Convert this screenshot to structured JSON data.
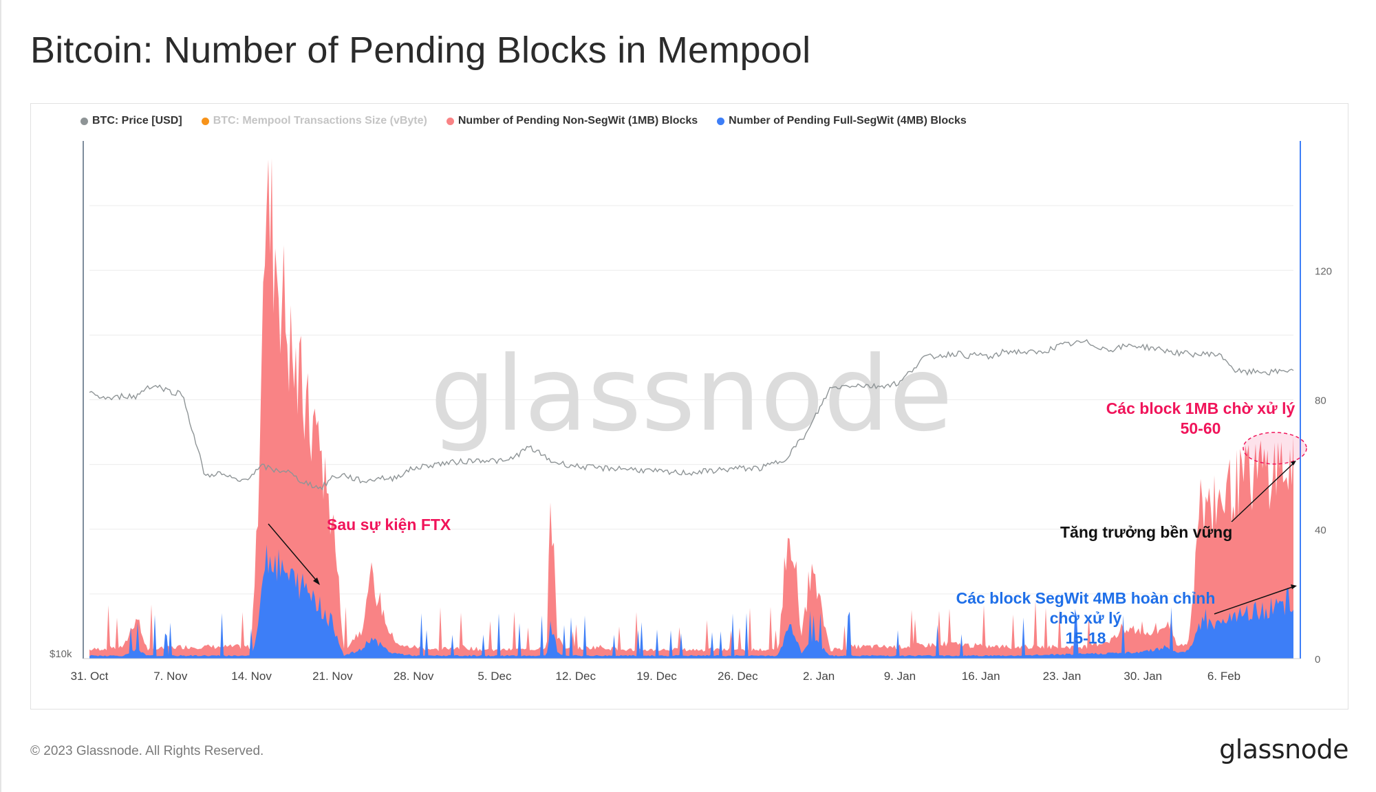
{
  "title": "Bitcoin: Number of Pending Blocks in Mempool",
  "legend": [
    {
      "label": "BTC: Price [USD]",
      "color": "#8e9496",
      "enabled": true
    },
    {
      "label": "BTC: Mempool Transactions Size (vByte)",
      "color": "#f7931a",
      "enabled": false
    },
    {
      "label": "Number of Pending Non-SegWit (1MB) Blocks",
      "color": "#f98385",
      "enabled": true
    },
    {
      "label": "Number of Pending Full-SegWit (4MB) Blocks",
      "color": "#3d7ef7",
      "enabled": true
    }
  ],
  "watermark": "glassnode",
  "footer": {
    "copyright": "© 2023 Glassnode. All Rights Reserved.",
    "logo": "glassnode"
  },
  "annotations": {
    "ftx": "Sau sự kiện FTX",
    "growth": "Tăng trưởng bền vững",
    "mb1_line1": "Các block 1MB chờ xử lý",
    "mb1_line2": "50-60",
    "segwit_line1": "Các block SegWit 4MB hoàn chỉnh",
    "segwit_line2": "chờ xử lý",
    "segwit_line3": "15-18"
  },
  "colors": {
    "price": "#8e9496",
    "non_segwit": "#f98385",
    "full_segwit": "#3d7ef7",
    "annotation_pink": "#f0145a",
    "annotation_blue": "#1f6fe8",
    "axis_right": "#3d7ef7"
  },
  "chart_data": {
    "type": "area",
    "x_tick_labels": [
      "31. Oct",
      "7. Nov",
      "14. Nov",
      "21. Nov",
      "28. Nov",
      "5. Dec",
      "12. Dec",
      "19. Dec",
      "26. Dec",
      "2. Jan",
      "9. Jan",
      "16. Jan",
      "23. Jan",
      "30. Jan",
      "6. Feb"
    ],
    "x_range_days": [
      0,
      104
    ],
    "left_axis": {
      "tick_labels": [
        "$10k"
      ],
      "scale": "log"
    },
    "right_axis": {
      "tick_labels": [
        "0",
        "40",
        "80",
        "120"
      ],
      "range": [
        0,
        160
      ]
    },
    "series": [
      {
        "name": "BTC: Price [USD]",
        "axis": "left",
        "x": [
          0,
          1,
          2,
          3,
          4,
          5,
          6,
          7,
          8,
          9,
          10,
          11,
          12,
          13,
          14,
          15,
          16,
          17,
          18,
          19,
          20,
          21,
          22,
          23,
          24,
          25,
          26,
          28,
          30,
          32,
          34,
          36,
          38,
          40,
          42,
          44,
          46,
          48,
          50,
          52,
          54,
          56,
          58,
          60,
          62,
          64,
          66,
          68,
          70,
          72,
          74,
          75,
          76,
          77,
          78,
          79,
          80,
          82,
          84,
          86,
          88,
          90,
          92,
          94,
          96,
          97,
          98,
          99,
          100,
          101,
          102,
          103,
          104
        ],
        "values": [
          20600,
          20400,
          20300,
          20500,
          20400,
          21000,
          21000,
          20700,
          20600,
          18400,
          16400,
          16600,
          16400,
          16200,
          16500,
          16900,
          16700,
          16700,
          16300,
          16100,
          15900,
          16400,
          16500,
          16300,
          16200,
          16400,
          16300,
          16800,
          17000,
          17100,
          17200,
          17100,
          17800,
          17100,
          16900,
          16800,
          16800,
          16700,
          16600,
          16600,
          16700,
          16800,
          16800,
          17200,
          18500,
          20900,
          21100,
          21000,
          21200,
          22700,
          22900,
          23000,
          22800,
          22900,
          22700,
          23100,
          23100,
          23000,
          23500,
          23700,
          23200,
          23500,
          23300,
          23000,
          22900,
          23000,
          22700,
          21900,
          21800,
          21900,
          21800,
          21900,
          22000
        ]
      },
      {
        "name": "Number of Pending Non-SegWit (1MB) Blocks",
        "axis": "right",
        "x": [
          0,
          3,
          4,
          5,
          8,
          12,
          14,
          14.6,
          15,
          15.5,
          16,
          16.8,
          17.5,
          18.5,
          19,
          19.5,
          20,
          20.5,
          21,
          22,
          23.5,
          24.3,
          25,
          26,
          27,
          28,
          30,
          32,
          34,
          36,
          38,
          39.5,
          39.8,
          40.1,
          40.4,
          41,
          44,
          46,
          48,
          50,
          52,
          54,
          56,
          58,
          59.5,
          60.4,
          60.8,
          61.5,
          62.3,
          63,
          64,
          66,
          70,
          74,
          78,
          82,
          86,
          88,
          90,
          92,
          93,
          94,
          95,
          95.5,
          96,
          96.5,
          97,
          98,
          99,
          100,
          101,
          102,
          103,
          104
        ],
        "values": [
          3,
          4,
          14,
          3,
          4,
          4,
          4,
          60,
          143,
          147,
          140,
          118,
          100,
          85,
          78,
          77,
          70,
          55,
          48,
          3,
          10,
          26,
          20,
          8,
          4,
          4,
          3,
          4,
          3,
          3,
          3,
          4,
          50,
          40,
          8,
          3,
          4,
          3,
          3,
          3,
          3,
          3,
          3,
          3,
          3,
          44,
          40,
          6,
          30,
          20,
          3,
          4,
          4,
          5,
          4,
          4,
          4,
          6,
          10,
          8,
          12,
          4,
          6,
          30,
          52,
          50,
          52,
          55,
          58,
          60,
          63,
          64,
          65,
          62
        ]
      },
      {
        "name": "Number of Pending Full-SegWit (4MB) Blocks",
        "axis": "right",
        "x": [
          0,
          3,
          4,
          5,
          8,
          12,
          14,
          14.6,
          15,
          15.5,
          16,
          17,
          18.5,
          19.5,
          20.5,
          21,
          22,
          23.5,
          24.3,
          25,
          26,
          28,
          32,
          36,
          39.5,
          39.8,
          40.1,
          40.4,
          41,
          48,
          56,
          59.5,
          60.4,
          60.8,
          61.5,
          62.3,
          63,
          64,
          70,
          80,
          90,
          92,
          93,
          94,
          95,
          95.5,
          96,
          97,
          98,
          99,
          100,
          101,
          102,
          103,
          104
        ],
        "values": [
          1,
          1,
          3,
          1,
          1,
          1,
          1,
          10,
          34,
          36,
          32,
          28,
          24,
          20,
          14,
          12,
          1,
          3,
          7,
          5,
          2,
          1,
          1,
          1,
          1,
          11,
          9,
          2,
          1,
          1,
          1,
          1,
          11,
          10,
          2,
          7,
          5,
          1,
          1,
          1,
          2,
          3,
          4,
          2,
          3,
          8,
          12,
          12,
          13,
          14,
          15,
          16,
          17,
          17,
          16
        ]
      }
    ]
  }
}
